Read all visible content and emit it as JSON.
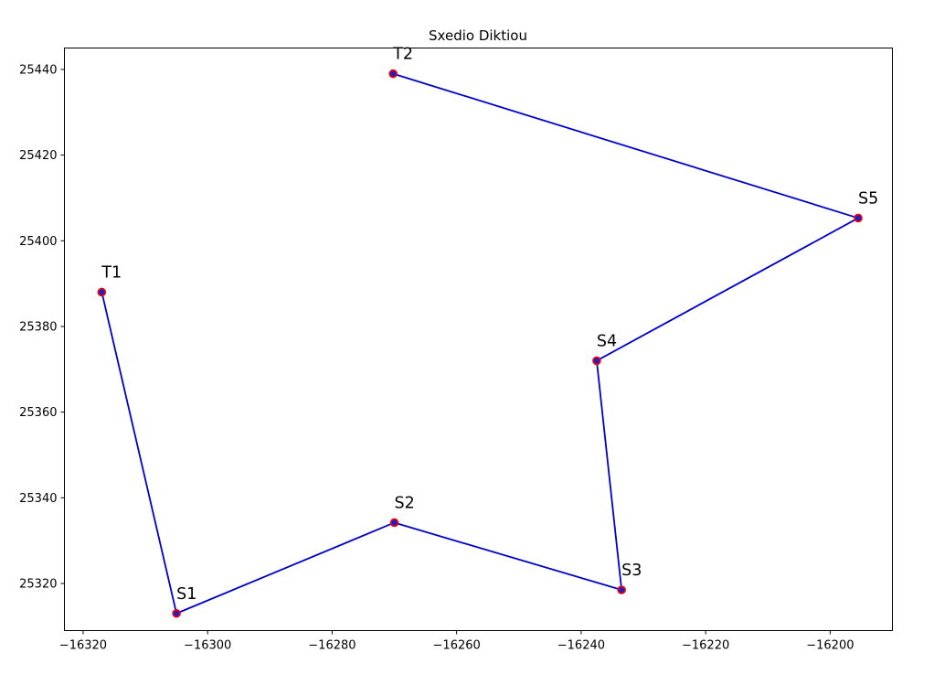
{
  "chart_data": {
    "type": "line",
    "title": "Sxedio Diktiou",
    "xlabel": "",
    "ylabel": "",
    "xlim": [
      -16323,
      -16190
    ],
    "ylim": [
      25309,
      25445
    ],
    "x_ticks": [
      -16320,
      -16300,
      -16280,
      -16260,
      -16240,
      -16220,
      -16200
    ],
    "x_tick_labels": [
      "−16320",
      "−16300",
      "−16280",
      "−16260",
      "−16240",
      "−16220",
      "−16200"
    ],
    "y_ticks": [
      25320,
      25340,
      25360,
      25380,
      25400,
      25420,
      25440
    ],
    "y_tick_labels": [
      "25320",
      "25340",
      "25360",
      "25380",
      "25400",
      "25420",
      "25440"
    ],
    "grid": false,
    "series": [
      {
        "line_color": "#0000cc",
        "marker_face_color": "#1f1fbf",
        "marker_edge_color": "#ff0000",
        "points": [
          {
            "label": "T1",
            "x": -16317,
            "y": 25388
          },
          {
            "label": "S1",
            "x": -16305,
            "y": 25313
          },
          {
            "label": "S2",
            "x": -16270,
            "y": 25334.2
          },
          {
            "label": "S3",
            "x": -16233.5,
            "y": 25318.5
          },
          {
            "label": "S4",
            "x": -16237.5,
            "y": 25372
          },
          {
            "label": "S5",
            "x": -16195.5,
            "y": 25405.3
          },
          {
            "label": "T2",
            "x": -16270.2,
            "y": 25439
          }
        ]
      }
    ]
  }
}
